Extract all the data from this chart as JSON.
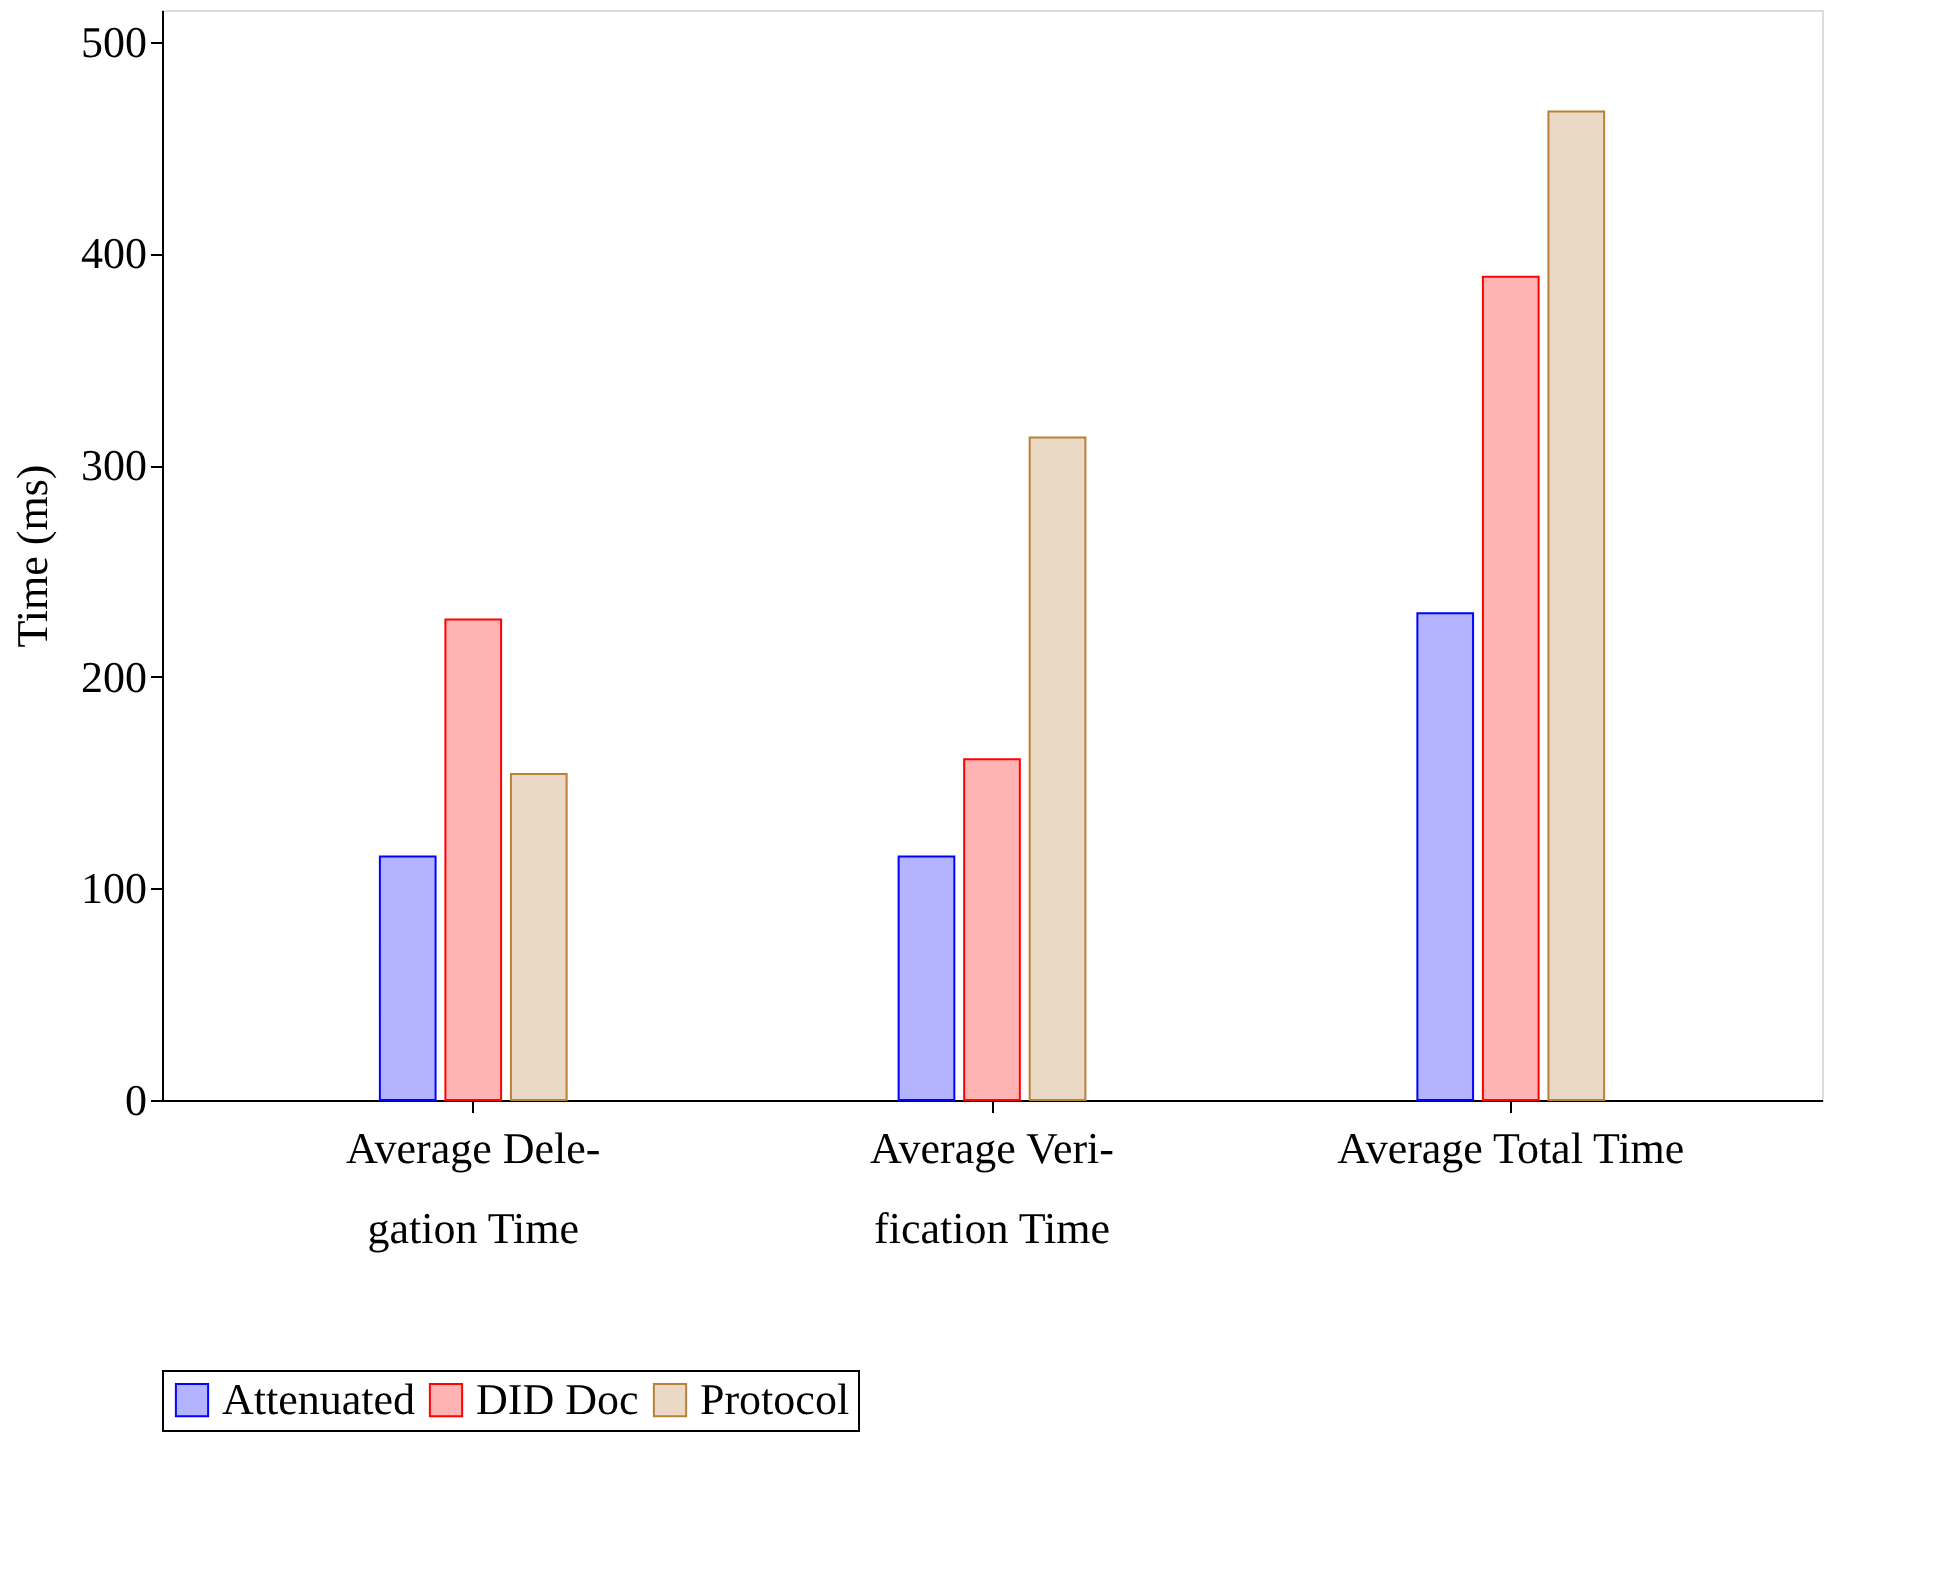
{
  "chart_data": {
    "type": "bar",
    "ylabel": "Time (ms)",
    "categories": [
      "Average Dele-\ngation Time",
      "Average Veri-\nfication Time",
      "Average Total Time"
    ],
    "series": [
      {
        "name": "Attenuated",
        "color": "#b3b3ff",
        "values": [
          115,
          115,
          230
        ]
      },
      {
        "name": "DID Doc",
        "color": "#ffb3b3",
        "values": [
          227,
          161,
          389
        ]
      },
      {
        "name": "Protocol",
        "color": "#ead9c4",
        "values": [
          154,
          313,
          467
        ]
      }
    ],
    "ylim": [
      0,
      515
    ],
    "yticks": [
      0,
      100,
      200,
      300,
      400,
      500
    ],
    "grid": false,
    "legend": "bottom"
  }
}
